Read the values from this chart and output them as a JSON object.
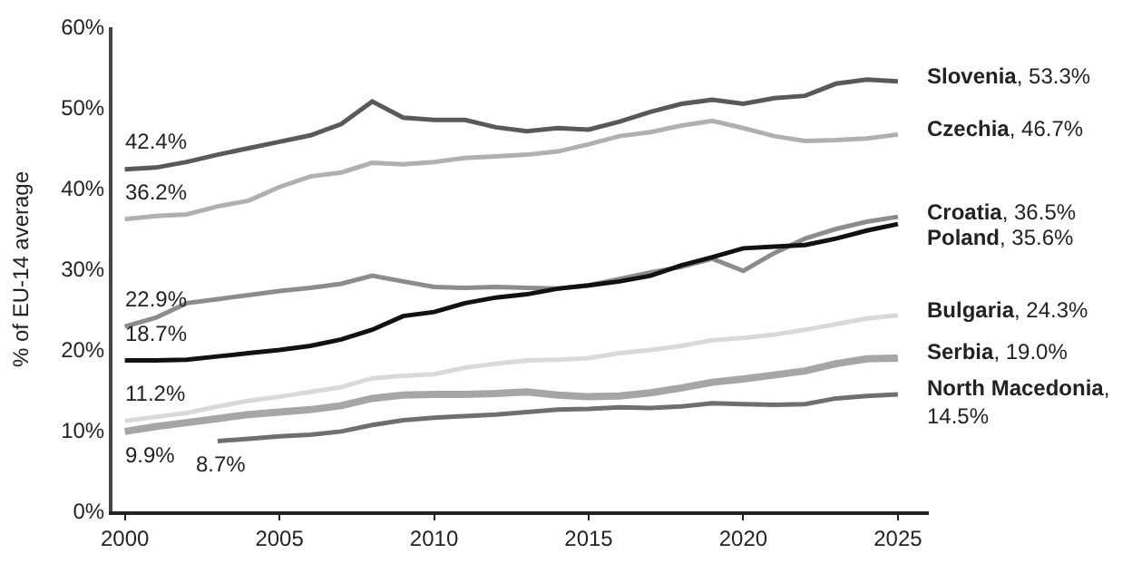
{
  "chart_data": {
    "type": "line",
    "ylabel": "% of EU-14 average",
    "x": [
      2000,
      2001,
      2002,
      2003,
      2004,
      2005,
      2006,
      2007,
      2008,
      2009,
      2010,
      2011,
      2012,
      2013,
      2014,
      2015,
      2016,
      2017,
      2018,
      2019,
      2020,
      2021,
      2022,
      2023,
      2024,
      2025
    ],
    "xlim": [
      1999.6,
      2026
    ],
    "xticks": [
      2000,
      2005,
      2010,
      2015,
      2020,
      2025
    ],
    "ylim": [
      0,
      60
    ],
    "yticks": [
      {
        "value": 0,
        "label": "0%"
      },
      {
        "value": 10,
        "label": "10%"
      },
      {
        "value": 20,
        "label": "20%"
      },
      {
        "value": 30,
        "label": "30%"
      },
      {
        "value": 40,
        "label": "40%"
      },
      {
        "value": 50,
        "label": "50%"
      },
      {
        "value": 60,
        "label": "60%"
      }
    ],
    "legend": false,
    "marker": "none",
    "line_style": "solid",
    "series": [
      {
        "color": "#595959",
        "values": [
          42.4,
          42.6,
          43.3,
          44.2,
          45,
          45.8,
          46.6,
          48,
          50.8,
          48.8,
          48.5,
          48.5,
          47.6,
          47.1,
          47.5,
          47.3,
          48.3,
          49.5,
          50.5,
          51,
          50.5,
          51.2,
          51.5,
          53,
          53.5,
          53.3
        ],
        "value_labels": [
          "42.4%",
          null,
          null,
          null,
          null,
          null,
          null,
          null,
          null,
          null,
          null,
          null,
          null,
          null,
          null,
          null,
          null,
          null,
          null,
          null,
          null,
          null,
          null,
          null,
          null,
          "Slovenia, 53.3%"
        ]
      },
      {
        "color": "#b0b0b0",
        "values": [
          36.2,
          36.6,
          36.8,
          37.8,
          38.5,
          40.2,
          41.5,
          42,
          43.2,
          43,
          43.3,
          43.8,
          44,
          44.2,
          44.6,
          45.5,
          46.5,
          47,
          47.8,
          48.4,
          47.5,
          46.5,
          45.9,
          46,
          46.2,
          46.7
        ],
        "value_labels": [
          "36.2%",
          null,
          null,
          null,
          null,
          null,
          null,
          null,
          null,
          null,
          null,
          null,
          null,
          null,
          null,
          null,
          null,
          null,
          null,
          null,
          null,
          null,
          null,
          null,
          null,
          "Czechia, 46.7%"
        ]
      },
      {
        "color": "#8c8c8c",
        "values": [
          22.9,
          24,
          25.8,
          26.3,
          26.8,
          27.3,
          27.7,
          28.2,
          29.2,
          28.5,
          27.8,
          27.7,
          27.8,
          27.7,
          27.6,
          28,
          28.8,
          29.6,
          30.3,
          31.3,
          29.8,
          32,
          33.8,
          35,
          35.9,
          36.5
        ],
        "value_labels": [
          "22.9%",
          null,
          null,
          null,
          null,
          null,
          null,
          null,
          null,
          null,
          null,
          null,
          null,
          null,
          null,
          null,
          null,
          null,
          null,
          null,
          null,
          null,
          null,
          null,
          null,
          "Croatia, 36.5%"
        ]
      },
      {
        "color": "#111111",
        "values": [
          18.7,
          18.7,
          18.8,
          19.2,
          19.6,
          20,
          20.5,
          21.3,
          22.5,
          24.2,
          24.7,
          25.8,
          26.5,
          26.9,
          27.6,
          28,
          28.5,
          29.2,
          30.5,
          31.5,
          32.6,
          32.8,
          33,
          33.8,
          34.8,
          35.6
        ],
        "value_labels": [
          "18.7%",
          null,
          null,
          null,
          null,
          null,
          null,
          null,
          null,
          null,
          null,
          null,
          null,
          null,
          null,
          null,
          null,
          null,
          null,
          null,
          null,
          null,
          null,
          null,
          null,
          "Poland, 35.6%"
        ]
      },
      {
        "color": "#d9d9d9",
        "values": [
          11.2,
          11.7,
          12.2,
          13,
          13.7,
          14.2,
          14.8,
          15.4,
          16.5,
          16.8,
          17,
          17.8,
          18.3,
          18.7,
          18.8,
          19,
          19.6,
          20,
          20.5,
          21.2,
          21.5,
          21.9,
          22.5,
          23.2,
          23.9,
          24.3
        ],
        "value_labels": [
          "11.2%",
          null,
          null,
          null,
          null,
          null,
          null,
          null,
          null,
          null,
          null,
          null,
          null,
          null,
          null,
          null,
          null,
          null,
          null,
          null,
          null,
          null,
          null,
          null,
          null,
          "Bulgaria, 24.3%"
        ]
      },
      {
        "color": "#a6a6a6",
        "values": [
          9.9,
          10.5,
          11,
          11.5,
          12,
          12.3,
          12.6,
          13.1,
          14,
          14.4,
          14.5,
          14.5,
          14.6,
          14.8,
          14.4,
          14.2,
          14.3,
          14.7,
          15.3,
          16,
          16.4,
          16.9,
          17.4,
          18.3,
          18.9,
          19.0
        ],
        "value_labels": [
          "9.9%",
          null,
          null,
          null,
          null,
          null,
          null,
          null,
          null,
          null,
          null,
          null,
          null,
          null,
          null,
          null,
          null,
          null,
          null,
          null,
          null,
          null,
          null,
          null,
          null,
          "Serbia, 19.0%"
        ]
      },
      {
        "color": "#6f6f6f",
        "x": [
          2003,
          2004,
          2005,
          2006,
          2007,
          2008,
          2009,
          2010,
          2011,
          2012,
          2013,
          2014,
          2015,
          2016,
          2017,
          2018,
          2019,
          2020,
          2021,
          2022,
          2023,
          2024,
          2025
        ],
        "values": [
          8.7,
          9,
          9.3,
          9.5,
          9.9,
          10.7,
          11.3,
          11.6,
          11.8,
          12.0,
          12.3,
          12.6,
          12.7,
          12.9,
          12.8,
          13.0,
          13.4,
          13.3,
          13.2,
          13.3,
          14.0,
          14.3,
          14.5
        ],
        "value_labels": [
          "8.7%",
          null,
          null,
          null,
          null,
          null,
          null,
          null,
          null,
          null,
          null,
          null,
          null,
          null,
          null,
          null,
          null,
          null,
          null,
          null,
          null,
          null,
          "North Macedonia, 14.5%"
        ]
      }
    ]
  }
}
